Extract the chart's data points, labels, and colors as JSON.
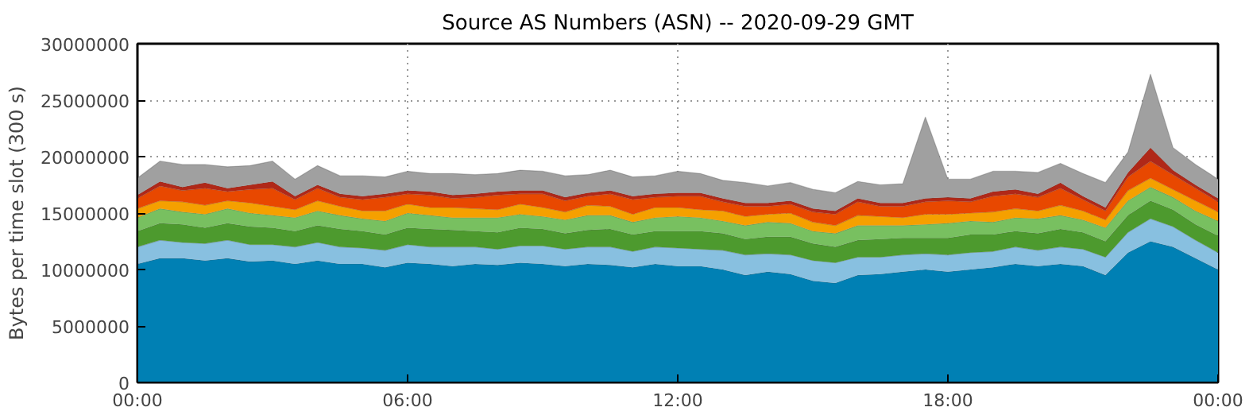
{
  "chart_data": {
    "type": "area",
    "stacked": true,
    "title": "Source AS Numbers (ASN) -- 2020-09-29 GMT",
    "ylabel": "Bytes per time slot (300 s)",
    "x": [
      0,
      0.5,
      1,
      1.5,
      2,
      2.5,
      3,
      3.5,
      4,
      4.5,
      5,
      5.5,
      6,
      6.5,
      7,
      7.5,
      8,
      8.5,
      9,
      9.5,
      10,
      10.5,
      11,
      11.5,
      12,
      12.5,
      13,
      13.5,
      14,
      14.5,
      15,
      15.5,
      16,
      16.5,
      17,
      17.5,
      18,
      18.5,
      19,
      19.5,
      20,
      20.5,
      21,
      21.5,
      22,
      22.5,
      23,
      23.5,
      24
    ],
    "xlim": [
      0,
      24
    ],
    "xticks": [
      {
        "value": 0,
        "label": "00:00"
      },
      {
        "value": 6,
        "label": "06:00"
      },
      {
        "value": 12,
        "label": "12:00"
      },
      {
        "value": 18,
        "label": "18:00"
      },
      {
        "value": 24,
        "label": "00:00"
      }
    ],
    "ylim": [
      0,
      30000000
    ],
    "yticks": [
      0,
      5000000,
      10000000,
      15000000,
      20000000,
      25000000,
      30000000
    ],
    "grid": true,
    "series": [
      {
        "color": "#0080b4",
        "values": [
          10500000.0,
          11000000.0,
          11000000.0,
          10800000.0,
          11000000.0,
          10700000.0,
          10800000.0,
          10500000.0,
          10800000.0,
          10500000.0,
          10500000.0,
          10200000.0,
          10600000.0,
          10500000.0,
          10300000.0,
          10500000.0,
          10400000.0,
          10600000.0,
          10500000.0,
          10300000.0,
          10500000.0,
          10400000.0,
          10200000.0,
          10500000.0,
          10300000.0,
          10300000.0,
          10000000.0,
          9500000.0,
          9800000.0,
          9600000.0,
          9000000.0,
          8800000.0,
          9500000.0,
          9600000.0,
          9800000.0,
          10000000.0,
          9800000.0,
          10000000.0,
          10200000.0,
          10500000.0,
          10300000.0,
          10500000.0,
          10300000.0,
          9500000.0,
          11500000.0,
          12500000.0,
          12000000.0,
          11000000.0,
          10000000.0
        ]
      },
      {
        "color": "#88c0e0",
        "values": [
          1500000.0,
          1600000.0,
          1400000.0,
          1500000.0,
          1600000.0,
          1500000.0,
          1400000.0,
          1500000.0,
          1600000.0,
          1500000.0,
          1400000.0,
          1500000.0,
          1600000.0,
          1500000.0,
          1700000.0,
          1500000.0,
          1400000.0,
          1500000.0,
          1600000.0,
          1500000.0,
          1500000.0,
          1600000.0,
          1400000.0,
          1500000.0,
          1600000.0,
          1500000.0,
          1700000.0,
          1800000.0,
          1600000.0,
          1700000.0,
          1800000.0,
          1800000.0,
          1600000.0,
          1500000.0,
          1500000.0,
          1400000.0,
          1500000.0,
          1500000.0,
          1400000.0,
          1500000.0,
          1400000.0,
          1500000.0,
          1500000.0,
          1600000.0,
          1800000.0,
          2000000.0,
          1800000.0,
          1600000.0,
          1500000.0
        ]
      },
      {
        "color": "#4d9a2e",
        "values": [
          1400000.0,
          1500000.0,
          1600000.0,
          1400000.0,
          1500000.0,
          1600000.0,
          1500000.0,
          1400000.0,
          1500000.0,
          1600000.0,
          1500000.0,
          1400000.0,
          1500000.0,
          1600000.0,
          1500000.0,
          1400000.0,
          1500000.0,
          1600000.0,
          1500000.0,
          1400000.0,
          1500000.0,
          1600000.0,
          1500000.0,
          1400000.0,
          1500000.0,
          1600000.0,
          1500000.0,
          1400000.0,
          1500000.0,
          1600000.0,
          1500000.0,
          1400000.0,
          1500000.0,
          1600000.0,
          1500000.0,
          1400000.0,
          1500000.0,
          1600000.0,
          1500000.0,
          1400000.0,
          1500000.0,
          1600000.0,
          1500000.0,
          1400000.0,
          1500000.0,
          1600000.0,
          1500000.0,
          1400000.0,
          1500000.0
        ]
      },
      {
        "color": "#78c060",
        "values": [
          1200000.0,
          1300000.0,
          1100000.0,
          1200000.0,
          1300000.0,
          1200000.0,
          1100000.0,
          1200000.0,
          1300000.0,
          1200000.0,
          1100000.0,
          1200000.0,
          1300000.0,
          1200000.0,
          1100000.0,
          1200000.0,
          1300000.0,
          1200000.0,
          1100000.0,
          1200000.0,
          1300000.0,
          1200000.0,
          1100000.0,
          1200000.0,
          1300000.0,
          1200000.0,
          1100000.0,
          1200000.0,
          1300000.0,
          1200000.0,
          1100000.0,
          1200000.0,
          1300000.0,
          1200000.0,
          1100000.0,
          1200000.0,
          1300000.0,
          1200000.0,
          1100000.0,
          1200000.0,
          1300000.0,
          1200000.0,
          1100000.0,
          1200000.0,
          1300000.0,
          1200000.0,
          1100000.0,
          1200000.0,
          1300000.0
        ]
      },
      {
        "color": "#f5a000",
        "values": [
          800000.0,
          700000.0,
          900000.0,
          800000.0,
          700000.0,
          900000.0,
          800000.0,
          700000.0,
          900000.0,
          800000.0,
          700000.0,
          900000.0,
          800000.0,
          700000.0,
          900000.0,
          800000.0,
          700000.0,
          900000.0,
          800000.0,
          700000.0,
          900000.0,
          800000.0,
          700000.0,
          900000.0,
          800000.0,
          700000.0,
          900000.0,
          800000.0,
          700000.0,
          900000.0,
          800000.0,
          700000.0,
          900000.0,
          800000.0,
          700000.0,
          900000.0,
          800000.0,
          700000.0,
          900000.0,
          800000.0,
          700000.0,
          900000.0,
          800000.0,
          700000.0,
          900000.0,
          800000.0,
          700000.0,
          900000.0,
          800000.0
        ]
      },
      {
        "color": "#e84800",
        "values": [
          900000.0,
          1300000.0,
          1000000.0,
          1500000.0,
          800000.0,
          1200000.0,
          1600000.0,
          900000.0,
          1100000.0,
          800000.0,
          1000000.0,
          1200000.0,
          900000.0,
          1100000.0,
          800000.0,
          1000000.0,
          1300000.0,
          900000.0,
          1200000.0,
          1000000.0,
          800000.0,
          1100000.0,
          1300000.0,
          900000.0,
          1000000.0,
          1200000.0,
          800000.0,
          900000.0,
          700000.0,
          800000.0,
          900000.0,
          1000000.0,
          1200000.0,
          900000.0,
          1000000.0,
          1100000.0,
          1200000.0,
          1000000.0,
          1400000.0,
          1300000.0,
          1200000.0,
          1500000.0,
          1000000.0,
          800000.0,
          1200000.0,
          1500000.0,
          1300000.0,
          1100000.0,
          900000.0
        ]
      },
      {
        "color": "#b02818",
        "values": [
          300000.0,
          400000.0,
          300000.0,
          500000.0,
          300000.0,
          400000.0,
          600000.0,
          300000.0,
          300000.0,
          300000.0,
          300000.0,
          300000.0,
          300000.0,
          300000.0,
          300000.0,
          300000.0,
          300000.0,
          300000.0,
          300000.0,
          300000.0,
          300000.0,
          300000.0,
          300000.0,
          300000.0,
          300000.0,
          300000.0,
          300000.0,
          300000.0,
          300000.0,
          300000.0,
          300000.0,
          300000.0,
          300000.0,
          300000.0,
          300000.0,
          300000.0,
          300000.0,
          300000.0,
          400000.0,
          400000.0,
          300000.0,
          500000.0,
          300000.0,
          300000.0,
          400000.0,
          1200000.0,
          400000.0,
          300000.0,
          300000.0
        ]
      },
      {
        "color": "#a0a0a0",
        "values": [
          1500000.0,
          1800000.0,
          2000000.0,
          1600000.0,
          1900000.0,
          1700000.0,
          1800000.0,
          1500000.0,
          1700000.0,
          1600000.0,
          1800000.0,
          1500000.0,
          1700000.0,
          1600000.0,
          1900000.0,
          1700000.0,
          1600000.0,
          1800000.0,
          1700000.0,
          1900000.0,
          1600000.0,
          1800000.0,
          1700000.0,
          1600000.0,
          1900000.0,
          1700000.0,
          1600000.0,
          1800000.0,
          1500000.0,
          1600000.0,
          1700000.0,
          1600000.0,
          1500000.0,
          1600000.0,
          1700000.0,
          7200000.0,
          1600000.0,
          1700000.0,
          1800000.0,
          1600000.0,
          1900000.0,
          1700000.0,
          2000000.0,
          2200000.0,
          1800000.0,
          6500000.0,
          2000000.0,
          1800000.0,
          1700000.0
        ]
      }
    ]
  }
}
